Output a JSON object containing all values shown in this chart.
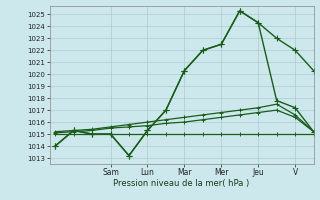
{
  "xlabel": "Pression niveau de la mer( hPa )",
  "bg_color": "#cce8ec",
  "grid_color": "#aaccd0",
  "line_color": "#1a5c1a",
  "ylim": [
    1012.5,
    1025.7
  ],
  "yticks": [
    1013,
    1014,
    1015,
    1016,
    1017,
    1018,
    1019,
    1020,
    1021,
    1022,
    1023,
    1024,
    1025
  ],
  "day_labels": [
    "Sam",
    "Lun",
    "Mar",
    "Mer",
    "Jeu",
    "V"
  ],
  "day_positions": [
    3,
    5,
    7,
    9,
    11,
    13
  ],
  "xlim": [
    -0.3,
    14.0
  ],
  "num_points": 15,
  "series_main_x": [
    0,
    1,
    2,
    3,
    4,
    5,
    6,
    7,
    8,
    9,
    10,
    11,
    12,
    13,
    14
  ],
  "series_main_y": [
    1014.0,
    1015.3,
    1015.0,
    1015.0,
    1013.2,
    1015.3,
    1017.0,
    1020.3,
    1022.0,
    1022.5,
    1025.3,
    1024.3,
    1023.0,
    1022.0,
    1020.3
  ],
  "series_peak_x": [
    0,
    1,
    2,
    3,
    4,
    5,
    6,
    7,
    8,
    9,
    10,
    11,
    12,
    13,
    14
  ],
  "series_peak_y": [
    1014.0,
    1015.3,
    1015.0,
    1015.0,
    1013.2,
    1015.3,
    1017.0,
    1020.3,
    1022.0,
    1022.5,
    1025.3,
    1024.3,
    1017.8,
    1017.2,
    1015.2
  ],
  "series_flat1_x": [
    0,
    1,
    2,
    3,
    4,
    5,
    6,
    7,
    8,
    9,
    10,
    11,
    12,
    13,
    14
  ],
  "series_flat1_y": [
    1015.0,
    1015.0,
    1015.0,
    1015.0,
    1015.0,
    1015.0,
    1015.0,
    1015.0,
    1015.0,
    1015.0,
    1015.0,
    1015.0,
    1015.0,
    1015.0,
    1015.0
  ],
  "series_flat2_x": [
    0,
    1,
    2,
    3,
    4,
    5,
    6,
    7,
    8,
    9,
    10,
    11,
    12,
    13,
    14
  ],
  "series_flat2_y": [
    1015.1,
    1015.2,
    1015.3,
    1015.5,
    1015.6,
    1015.7,
    1015.9,
    1016.0,
    1016.2,
    1016.4,
    1016.6,
    1016.8,
    1017.0,
    1016.4,
    1015.2
  ],
  "series_flat3_x": [
    0,
    1,
    2,
    3,
    4,
    5,
    6,
    7,
    8,
    9,
    10,
    11,
    12,
    13,
    14
  ],
  "series_flat3_y": [
    1015.2,
    1015.3,
    1015.4,
    1015.6,
    1015.8,
    1016.0,
    1016.2,
    1016.4,
    1016.6,
    1016.8,
    1017.0,
    1017.2,
    1017.5,
    1016.6,
    1015.2
  ]
}
